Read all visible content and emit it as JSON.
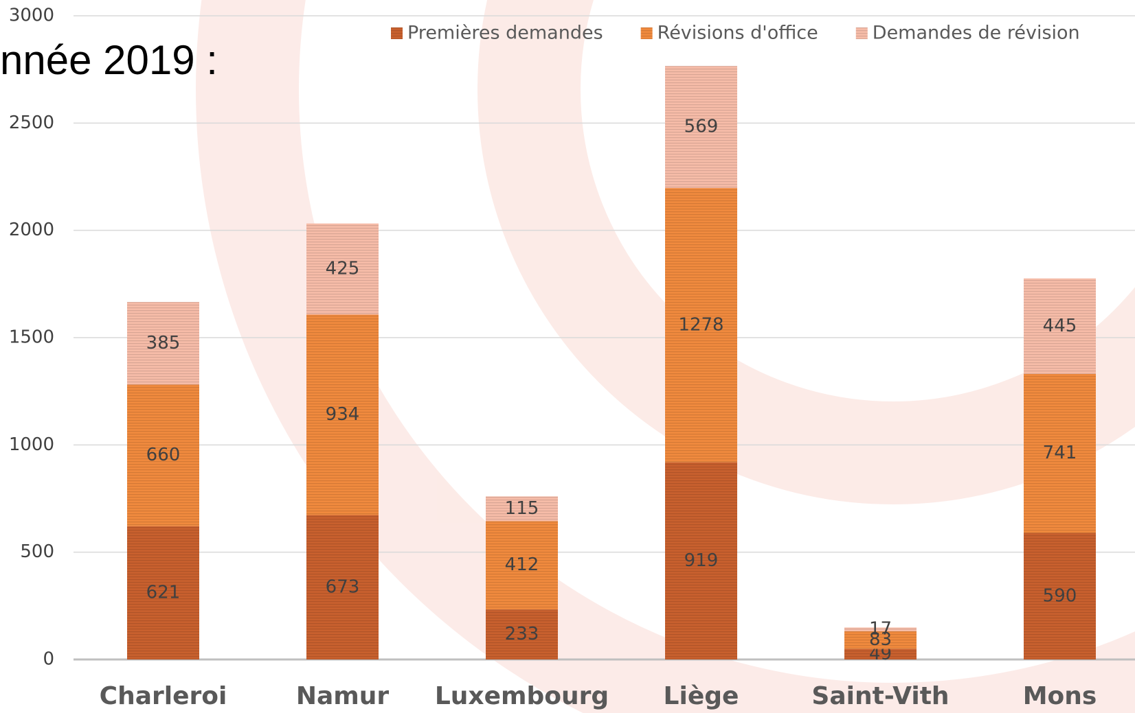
{
  "chart_data": {
    "type": "stacked-bar",
    "title": "nnée 2019 :",
    "categories": [
      "Charleroi",
      "Namur",
      "Luxembourg",
      "Liège",
      "Saint-Vith",
      "Mons"
    ],
    "series": [
      {
        "name": "Premières demandes",
        "color": "#c8602e",
        "values": [
          621,
          673,
          233,
          919,
          49,
          590
        ]
      },
      {
        "name": "Révisions d'office",
        "color": "#f08a3e",
        "values": [
          660,
          934,
          412,
          1278,
          83,
          741
        ]
      },
      {
        "name": "Demandes de révision",
        "color": "#f6bca8",
        "values": [
          385,
          425,
          115,
          569,
          17,
          445
        ]
      }
    ],
    "ylim": [
      0,
      3000
    ],
    "yticks": [
      0,
      500,
      1000,
      1500,
      2000,
      2500,
      3000
    ],
    "grid": true,
    "legend": "top"
  }
}
